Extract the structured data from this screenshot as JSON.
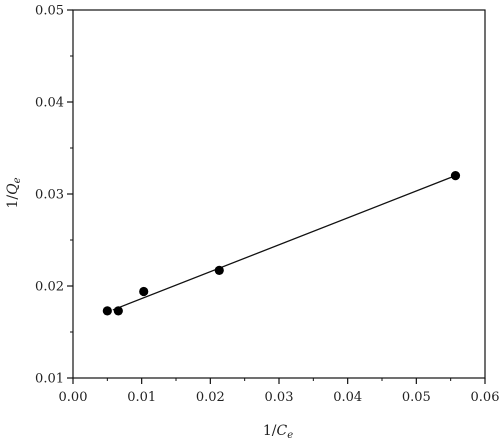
{
  "chart_data": {
    "type": "scatter",
    "title": "",
    "xlabel": {
      "prefix": "1/",
      "var": "C",
      "sub": "e"
    },
    "ylabel": {
      "prefix": "1/",
      "var": "Q",
      "sub": "e"
    },
    "xlim": [
      0.0,
      0.06
    ],
    "ylim": [
      0.01,
      0.05
    ],
    "xticks": [
      "0.00",
      "0.01",
      "0.02",
      "0.03",
      "0.04",
      "0.05",
      "0.06"
    ],
    "yticks": [
      "0.01",
      "0.02",
      "0.03",
      "0.04",
      "0.05"
    ],
    "grid": false,
    "series": [
      {
        "x": [
          0.005,
          0.0066,
          0.0103,
          0.0213,
          0.0557
        ],
        "y": [
          0.0173,
          0.0173,
          0.0194,
          0.0217,
          0.032
        ]
      }
    ],
    "fit_line": {
      "x": [
        0.0058,
        0.0557
      ],
      "y": [
        0.0174,
        0.032
      ]
    }
  }
}
